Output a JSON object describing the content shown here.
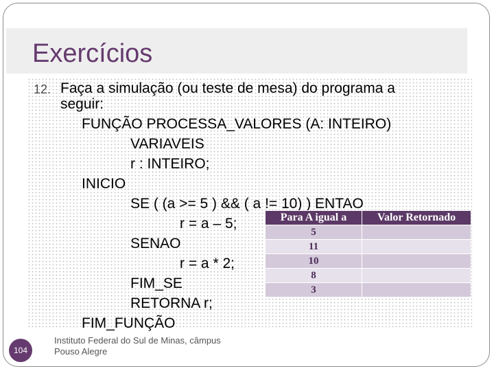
{
  "slide": {
    "title": "Exercícios",
    "number": "104",
    "footer": [
      "Instituto Federal do Sul de Minas, câmpus",
      "Pouso Alegre"
    ]
  },
  "exercise": {
    "number": "12.",
    "lines": [
      "Faça a simulação (ou teste de mesa) do programa a",
      "seguir:",
      "FUNÇÃO PROCESSA_VALORES (A: INTEIRO)",
      "VARIAVEIS",
      "r : INTEIRO;",
      "INICIO",
      "SE ( (a >= 5 ) && ( a != 10) ) ENTAO",
      "r = a – 5;",
      "SENAO",
      "r = a * 2;",
      "FIM_SE",
      "RETORNA r;",
      "FIM_FUNÇÃO"
    ]
  },
  "table": {
    "headers": [
      "Para A igual a",
      "Valor Retornado"
    ],
    "rows": [
      [
        "5",
        ""
      ],
      [
        "11",
        ""
      ],
      [
        "10",
        ""
      ],
      [
        "8",
        ""
      ],
      [
        "3",
        ""
      ]
    ]
  },
  "colors": {
    "accent": "#653a6e",
    "header_bg": "#5b3866",
    "row_light": "#e7e1eb",
    "row_dark": "#d4c9da"
  }
}
